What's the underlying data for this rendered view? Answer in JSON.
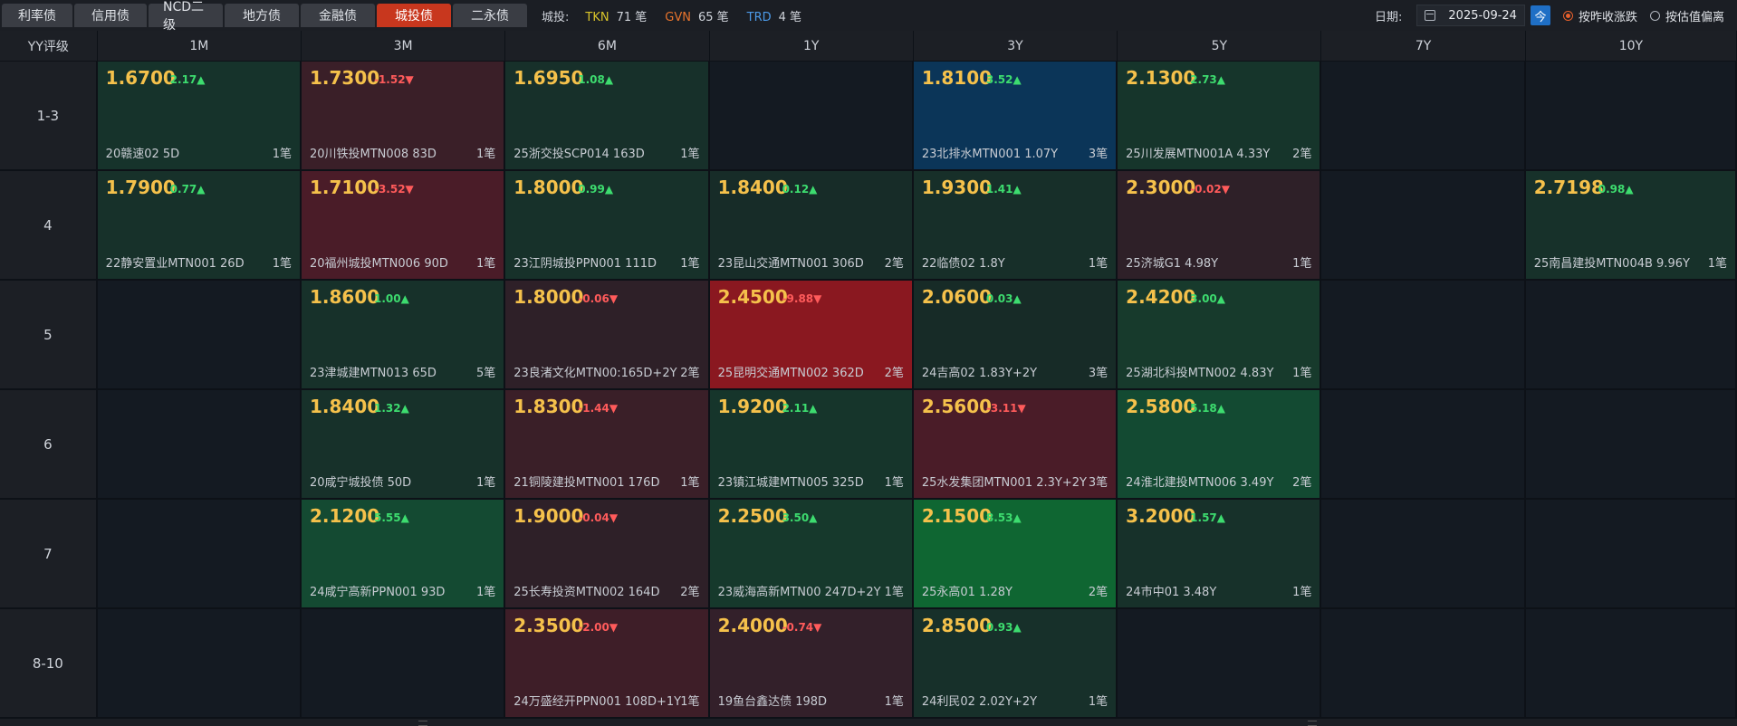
{
  "tabs": [
    {
      "label": "利率债",
      "active": false
    },
    {
      "label": "信用债",
      "active": false
    },
    {
      "label": "NCD二级",
      "active": false
    },
    {
      "label": "地方债",
      "active": false
    },
    {
      "label": "金融债",
      "active": false
    },
    {
      "label": "城投债",
      "active": true
    },
    {
      "label": "二永债",
      "active": false
    }
  ],
  "stats": {
    "label": "城投:",
    "items": [
      {
        "key": "TKN",
        "value": "71 笔",
        "color": "#d9c52a"
      },
      {
        "key": "GVN",
        "value": "65 笔",
        "color": "#e8742c"
      },
      {
        "key": "TRD",
        "value": "4 笔",
        "color": "#4c9ae8"
      }
    ]
  },
  "date": {
    "label": "日期:",
    "value": "2025-09-24",
    "today": "今"
  },
  "radios": [
    {
      "label": "按昨收涨跌",
      "checked": true
    },
    {
      "label": "按估值偏离",
      "checked": false
    }
  ],
  "grid": {
    "corner": "YY评级",
    "columns": [
      "1M",
      "3M",
      "6M",
      "1Y",
      "3Y",
      "5Y",
      "7Y",
      "10Y"
    ],
    "rows": [
      {
        "label": "1-3",
        "cells": [
          {
            "yield": "1.6700",
            "change": "2.17▲",
            "dir": "up",
            "bond": "20赣速02 5D",
            "count": "1笔",
            "bg": "#16332b"
          },
          {
            "yield": "1.7300",
            "change": "-1.52▼",
            "dir": "down",
            "bond": "20川铁投MTN008 83D",
            "count": "1笔",
            "bg": "#3a1f28"
          },
          {
            "yield": "1.6950",
            "change": "1.08▲",
            "dir": "up",
            "bond": "25浙交投SCP014 163D",
            "count": "1笔",
            "bg": "#17302a"
          },
          null,
          {
            "yield": "1.8100",
            "change": "3.52▲",
            "dir": "up",
            "bond": "23北排水MTN001 1.07Y",
            "count": "3笔",
            "bg": "#0b3558"
          },
          {
            "yield": "2.1300",
            "change": "2.73▲",
            "dir": "up",
            "bond": "25川发展MTN001A 4.33Y",
            "count": "2笔",
            "bg": "#16352b"
          },
          null,
          null
        ]
      },
      {
        "label": "4",
        "cells": [
          {
            "yield": "1.7900",
            "change": "0.77▲",
            "dir": "up",
            "bond": "22静安置业MTN001 26D",
            "count": "1笔",
            "bg": "#17312a"
          },
          {
            "yield": "1.7100",
            "change": "-3.52▼",
            "dir": "down",
            "bond": "20福州城投MTN006 90D",
            "count": "1笔",
            "bg": "#4a1c28"
          },
          {
            "yield": "1.8000",
            "change": "0.99▲",
            "dir": "up",
            "bond": "23江阴城投PPN001 111D",
            "count": "1笔",
            "bg": "#17312a"
          },
          {
            "yield": "1.8400",
            "change": "0.12▲",
            "dir": "up",
            "bond": "23昆山交通MTN001 306D",
            "count": "2笔",
            "bg": "#172c28"
          },
          {
            "yield": "1.9300",
            "change": "1.41▲",
            "dir": "up",
            "bond": "22临债02 1.8Y",
            "count": "1笔",
            "bg": "#172f29"
          },
          {
            "yield": "2.3000",
            "change": "-0.02▼",
            "dir": "down",
            "bond": "25济城G1 4.98Y",
            "count": "1笔",
            "bg": "#2e2028"
          },
          null,
          {
            "yield": "2.7198",
            "change": "0.98▲",
            "dir": "up",
            "bond": "25南昌建投MTN004B 9.96Y",
            "count": "1笔",
            "bg": "#17312a"
          }
        ]
      },
      {
        "label": "5",
        "cells": [
          null,
          {
            "yield": "1.8600",
            "change": "1.00▲",
            "dir": "up",
            "bond": "23津城建MTN013 65D",
            "count": "5笔",
            "bg": "#17312a"
          },
          {
            "yield": "1.8000",
            "change": "-0.06▼",
            "dir": "down",
            "bond": "23良渚文化MTN00:165D+2Y",
            "count": "2笔",
            "bg": "#2e2028"
          },
          {
            "yield": "2.4500",
            "change": "-9.88▼",
            "dir": "down",
            "bond": "25昆明交通MTN002 362D",
            "count": "2笔",
            "bg": "#8a1820"
          },
          {
            "yield": "2.0600",
            "change": "0.03▲",
            "dir": "up",
            "bond": "24吉高02 1.83Y+2Y",
            "count": "3笔",
            "bg": "#172b27"
          },
          {
            "yield": "2.4200",
            "change": "3.00▲",
            "dir": "up",
            "bond": "25湖北科投MTN002 4.83Y",
            "count": "1笔",
            "bg": "#173a2c"
          },
          null,
          null
        ]
      },
      {
        "label": "6",
        "cells": [
          null,
          {
            "yield": "1.8400",
            "change": "1.32▲",
            "dir": "up",
            "bond": "20咸宁城投债 50D",
            "count": "1笔",
            "bg": "#17312a"
          },
          {
            "yield": "1.8300",
            "change": "-1.44▼",
            "dir": "down",
            "bond": "21铜陵建投MTN001 176D",
            "count": "1笔",
            "bg": "#3a1f28"
          },
          {
            "yield": "1.9200",
            "change": "2.11▲",
            "dir": "up",
            "bond": "23镇江城建MTN005 325D",
            "count": "1笔",
            "bg": "#16352b"
          },
          {
            "yield": "2.5600",
            "change": "-3.11▼",
            "dir": "down",
            "bond": "25水发集团MTN001 2.3Y+2Y",
            "count": "3笔",
            "bg": "#4a1c28"
          },
          {
            "yield": "2.5800",
            "change": "5.18▲",
            "dir": "up",
            "bond": "24淮北建投MTN006 3.49Y",
            "count": "2笔",
            "bg": "#134a32"
          },
          null,
          null
        ]
      },
      {
        "label": "7",
        "cells": [
          null,
          {
            "yield": "2.1200",
            "change": "5.55▲",
            "dir": "up",
            "bond": "24咸宁高新PPN001 93D",
            "count": "1笔",
            "bg": "#144a32"
          },
          {
            "yield": "1.9000",
            "change": "-0.04▼",
            "dir": "down",
            "bond": "25长寿投资MTN002 164D",
            "count": "2笔",
            "bg": "#2e2028"
          },
          {
            "yield": "2.2500",
            "change": "3.50▲",
            "dir": "up",
            "bond": "23威海高新MTN00 247D+2Y",
            "count": "1笔",
            "bg": "#16392c"
          },
          {
            "yield": "2.1500",
            "change": "8.53▲",
            "dir": "up",
            "bond": "25永高01 1.28Y",
            "count": "2笔",
            "bg": "#0f6632"
          },
          {
            "yield": "3.2000",
            "change": "1.57▲",
            "dir": "up",
            "bond": "24市中01 3.48Y",
            "count": "1笔",
            "bg": "#17312a"
          },
          null,
          null
        ]
      },
      {
        "label": "8-10",
        "cells": [
          null,
          null,
          {
            "yield": "2.3500",
            "change": "-2.00▼",
            "dir": "down",
            "bond": "24万盛经开PPN001 108D+1Y",
            "count": "1笔",
            "bg": "#3e1e28"
          },
          {
            "yield": "2.4000",
            "change": "-0.74▼",
            "dir": "down",
            "bond": "19鱼台鑫达债 198D",
            "count": "1笔",
            "bg": "#33202a"
          },
          {
            "yield": "2.8500",
            "change": "0.93▲",
            "dir": "up",
            "bond": "24利民02 2.02Y+2Y",
            "count": "1笔",
            "bg": "#17302a"
          },
          null,
          null,
          null
        ]
      }
    ]
  }
}
